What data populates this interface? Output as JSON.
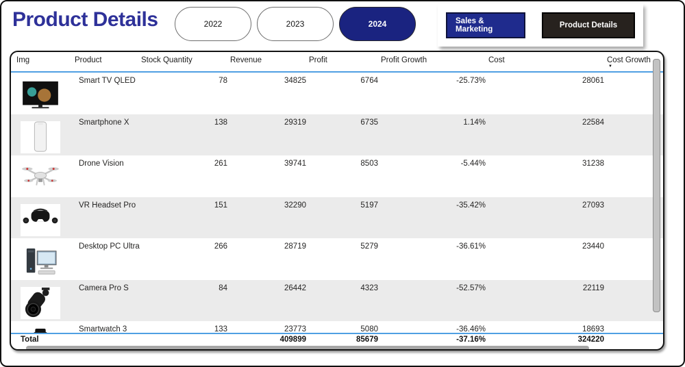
{
  "page": {
    "title": "Product Details"
  },
  "filters": {
    "years": [
      {
        "label": "2022",
        "selected": false
      },
      {
        "label": "2023",
        "selected": false
      },
      {
        "label": "2024",
        "selected": true
      }
    ]
  },
  "nav": {
    "buttons": [
      {
        "label": "Sales & Marketing",
        "active": false
      },
      {
        "label": "Product Details",
        "active": true
      }
    ]
  },
  "table": {
    "columns": [
      "Img",
      "Product",
      "Stock Quantity",
      "Revenue",
      "Profit",
      "Profit Growth",
      "Cost",
      "Cost Growth"
    ],
    "sort": {
      "column": "Cost Growth",
      "direction": "desc"
    },
    "rows": [
      {
        "image": "tv",
        "product": "Smart TV QLED",
        "stock_quantity": "78",
        "revenue": "34825",
        "profit": "6764",
        "profit_growth": "-25.73%",
        "cost": "28061"
      },
      {
        "image": "phone",
        "product": "Smartphone X",
        "stock_quantity": "138",
        "revenue": "29319",
        "profit": "6735",
        "profit_growth": "1.14%",
        "cost": "22584"
      },
      {
        "image": "drone",
        "product": "Drone Vision",
        "stock_quantity": "261",
        "revenue": "39741",
        "profit": "8503",
        "profit_growth": "-5.44%",
        "cost": "31238"
      },
      {
        "image": "vr",
        "product": "VR Headset Pro",
        "stock_quantity": "151",
        "revenue": "32290",
        "profit": "5197",
        "profit_growth": "-35.42%",
        "cost": "27093"
      },
      {
        "image": "desktop",
        "product": "Desktop PC Ultra",
        "stock_quantity": "266",
        "revenue": "28719",
        "profit": "5279",
        "profit_growth": "-36.61%",
        "cost": "23440"
      },
      {
        "image": "camera",
        "product": "Camera Pro S",
        "stock_quantity": "84",
        "revenue": "26442",
        "profit": "4323",
        "profit_growth": "-52.57%",
        "cost": "22119"
      },
      {
        "image": "watch",
        "product": "Smartwatch 3",
        "stock_quantity": "133",
        "revenue": "23773",
        "profit": "5080",
        "profit_growth": "-36.46%",
        "cost": "18693"
      }
    ],
    "total": {
      "label": "Total",
      "revenue": "409899",
      "profit": "85679",
      "profit_growth": "-37.16%",
      "cost": "324220"
    }
  },
  "colors": {
    "title_blue": "#2e3199",
    "selected_pill": "#1a2380",
    "nav_blue": "#1f2b8d",
    "nav_dark": "#27221e",
    "divider_blue": "#4f9fe3",
    "alt_row": "#ebebeb"
  }
}
